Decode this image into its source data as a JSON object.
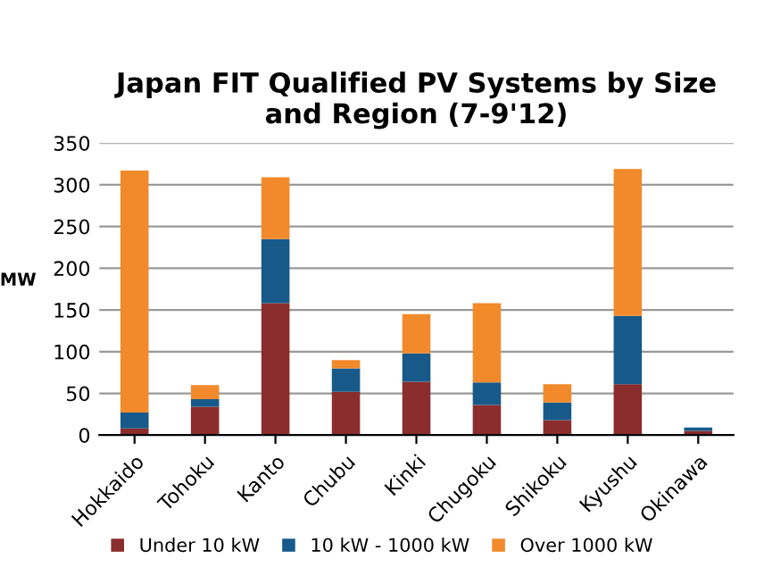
{
  "chart_data": {
    "type": "bar",
    "title": "Japan FIT Qualified PV Systems by Size\nand Region (7-9'12)",
    "ylabel": "MW",
    "categories": [
      "Hokkaido",
      "Tohoku",
      "Kanto",
      "Chubu",
      "Kinki",
      "Chugoku",
      "Shikoku",
      "Kyushu",
      "Okinawa"
    ],
    "stacked": true,
    "series": [
      {
        "name": "Under 10 kW",
        "color": "#8b2d2d",
        "values": [
          8,
          34,
          158,
          52,
          64,
          36,
          18,
          61,
          5
        ]
      },
      {
        "name": "10 kW - 1000 kW",
        "color": "#175a8a",
        "values": [
          19,
          9,
          77,
          28,
          34,
          27,
          21,
          82,
          4
        ]
      },
      {
        "name": "Over 1000 kW",
        "color": "#f28a2c",
        "values": [
          290,
          17,
          74,
          10,
          47,
          95,
          22,
          176,
          0
        ]
      }
    ],
    "ylim": [
      0,
      350
    ],
    "yticks": [
      0,
      50,
      100,
      150,
      200,
      250,
      300,
      350
    ],
    "grid": "y",
    "legend": "bottom"
  }
}
